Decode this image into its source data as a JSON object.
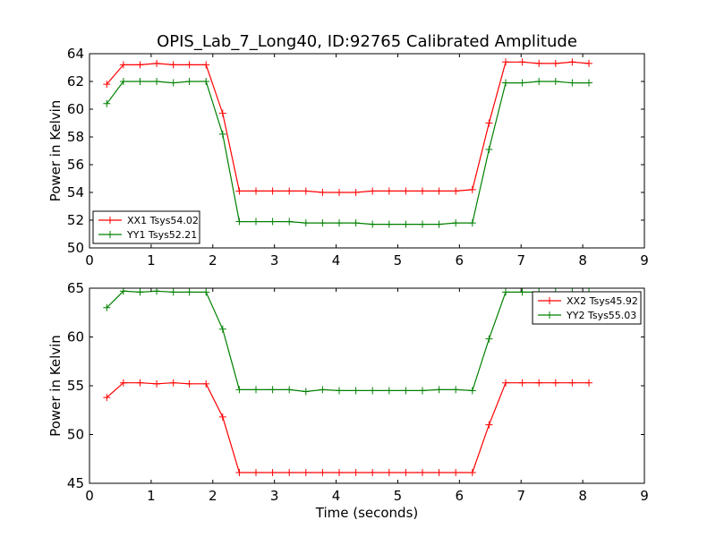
{
  "figure": {
    "title": "OPIS_Lab_7_Long40, ID:92765 Calibrated Amplitude",
    "xlabel": "Time (seconds)"
  },
  "colors": {
    "red": "#ff0000",
    "green": "#008000"
  },
  "chart_data": [
    {
      "type": "line",
      "title": "",
      "xlabel": "",
      "ylabel": "Power in Kelvin",
      "xlim": [
        0,
        9
      ],
      "ylim": [
        50,
        64
      ],
      "xticks": [
        "0",
        "1",
        "2",
        "3",
        "4",
        "5",
        "6",
        "7",
        "8",
        "9"
      ],
      "yticks": [
        "50",
        "52",
        "54",
        "56",
        "58",
        "60",
        "62",
        "64"
      ],
      "legend_position": "lower-left",
      "grid": false,
      "x": [
        0.28,
        0.55,
        0.82,
        1.09,
        1.36,
        1.62,
        1.89,
        2.16,
        2.43,
        2.7,
        2.97,
        3.24,
        3.51,
        3.78,
        4.05,
        4.32,
        4.59,
        4.86,
        5.13,
        5.4,
        5.67,
        5.94,
        6.21,
        6.48,
        6.75,
        7.02,
        7.29,
        7.56,
        7.83,
        8.1
      ],
      "series": [
        {
          "name": "XX1 Tsys54.02",
          "color": "#ff0000",
          "values": [
            61.8,
            63.2,
            63.2,
            63.3,
            63.2,
            63.2,
            63.2,
            59.7,
            54.1,
            54.1,
            54.1,
            54.1,
            54.1,
            54.0,
            54.0,
            54.0,
            54.1,
            54.1,
            54.1,
            54.1,
            54.1,
            54.1,
            54.2,
            59.0,
            63.4,
            63.4,
            63.3,
            63.3,
            63.4,
            63.3
          ]
        },
        {
          "name": "YY1 Tsys52.21",
          "color": "#008000",
          "values": [
            60.4,
            62.0,
            62.0,
            62.0,
            61.9,
            62.0,
            62.0,
            58.2,
            51.9,
            51.9,
            51.9,
            51.9,
            51.8,
            51.8,
            51.8,
            51.8,
            51.7,
            51.7,
            51.7,
            51.7,
            51.7,
            51.8,
            51.8,
            57.1,
            61.9,
            61.9,
            62.0,
            62.0,
            61.9,
            61.9
          ]
        }
      ]
    },
    {
      "type": "line",
      "title": "",
      "xlabel": "Time (seconds)",
      "ylabel": "Power in Kelvin",
      "xlim": [
        0,
        9
      ],
      "ylim": [
        45,
        65
      ],
      "xticks": [
        "0",
        "1",
        "2",
        "3",
        "4",
        "5",
        "6",
        "7",
        "8",
        "9"
      ],
      "yticks": [
        "45",
        "50",
        "55",
        "60",
        "65"
      ],
      "legend_position": "upper-right",
      "grid": false,
      "x": [
        0.28,
        0.55,
        0.82,
        1.09,
        1.36,
        1.62,
        1.89,
        2.16,
        2.43,
        2.7,
        2.97,
        3.24,
        3.51,
        3.78,
        4.05,
        4.32,
        4.59,
        4.86,
        5.13,
        5.4,
        5.67,
        5.94,
        6.21,
        6.48,
        6.75,
        7.02,
        7.29,
        7.56,
        7.83,
        8.1
      ],
      "series": [
        {
          "name": "XX2 Tsys45.92",
          "color": "#ff0000",
          "values": [
            53.8,
            55.3,
            55.3,
            55.2,
            55.3,
            55.2,
            55.2,
            51.8,
            46.1,
            46.1,
            46.1,
            46.1,
            46.1,
            46.1,
            46.1,
            46.1,
            46.1,
            46.1,
            46.1,
            46.1,
            46.1,
            46.1,
            46.1,
            51.0,
            55.3,
            55.3,
            55.3,
            55.3,
            55.3,
            55.3
          ]
        },
        {
          "name": "YY2 Tsys55.03",
          "color": "#008000",
          "values": [
            63.0,
            64.7,
            64.6,
            64.7,
            64.6,
            64.6,
            64.6,
            60.8,
            54.6,
            54.6,
            54.6,
            54.6,
            54.4,
            54.6,
            54.5,
            54.5,
            54.5,
            54.5,
            54.5,
            54.5,
            54.6,
            54.6,
            54.5,
            59.8,
            64.6,
            64.6,
            64.6,
            64.6,
            64.6,
            64.6
          ]
        }
      ]
    }
  ]
}
